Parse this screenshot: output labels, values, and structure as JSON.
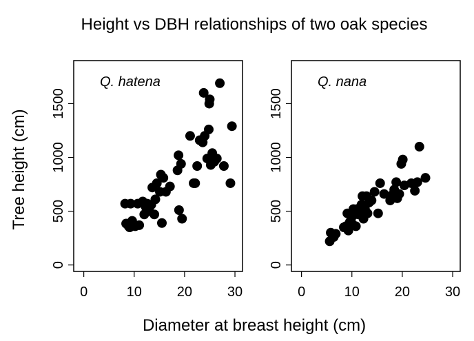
{
  "figure": {
    "title": "Height vs DBH relationships of two oak species",
    "xlabel": "Diameter at breast height (cm)",
    "ylabel": "Tree height (cm)"
  },
  "chart_data": [
    {
      "type": "scatter",
      "panel_label": "Q. hatena",
      "xlim": [
        -2,
        31.5
      ],
      "ylim": [
        -60,
        1900
      ],
      "x_ticks": [
        0,
        10,
        20,
        30
      ],
      "y_ticks": [
        0,
        500,
        1000,
        1500
      ],
      "grid": false,
      "points": [
        [
          8.2,
          570
        ],
        [
          8.4,
          385
        ],
        [
          8.9,
          360
        ],
        [
          9.1,
          350
        ],
        [
          9.3,
          570
        ],
        [
          9.6,
          410
        ],
        [
          10.2,
          360
        ],
        [
          10.7,
          570
        ],
        [
          11.0,
          370
        ],
        [
          11.7,
          590
        ],
        [
          12.0,
          470
        ],
        [
          12.3,
          540
        ],
        [
          12.6,
          570
        ],
        [
          13.0,
          500
        ],
        [
          13.4,
          560
        ],
        [
          13.6,
          720
        ],
        [
          14.0,
          470
        ],
        [
          14.2,
          610
        ],
        [
          14.5,
          760
        ],
        [
          15.1,
          680
        ],
        [
          15.3,
          840
        ],
        [
          15.5,
          390
        ],
        [
          15.8,
          810
        ],
        [
          16.3,
          680
        ],
        [
          17.1,
          730
        ],
        [
          18.6,
          880
        ],
        [
          18.8,
          1020
        ],
        [
          18.9,
          510
        ],
        [
          19.3,
          940
        ],
        [
          19.5,
          430
        ],
        [
          21.1,
          1200
        ],
        [
          21.8,
          760
        ],
        [
          22.1,
          760
        ],
        [
          22.5,
          920
        ],
        [
          23.0,
          1160
        ],
        [
          23.6,
          1140
        ],
        [
          23.8,
          1600
        ],
        [
          24.0,
          1200
        ],
        [
          24.5,
          990
        ],
        [
          24.8,
          1260
        ],
        [
          24.9,
          1500
        ],
        [
          25.0,
          1540
        ],
        [
          25.2,
          930
        ],
        [
          25.5,
          1040
        ],
        [
          25.9,
          960
        ],
        [
          26.4,
          990
        ],
        [
          27.0,
          1690
        ],
        [
          27.8,
          920
        ],
        [
          29.1,
          760
        ],
        [
          29.4,
          1290
        ]
      ]
    },
    {
      "type": "scatter",
      "panel_label": "Q. nana",
      "xlim": [
        -2,
        31.5
      ],
      "ylim": [
        -60,
        1900
      ],
      "x_ticks": [
        0,
        10,
        20,
        30
      ],
      "y_ticks": [
        0,
        500,
        1000,
        1500
      ],
      "grid": false,
      "points": [
        [
          5.6,
          220
        ],
        [
          5.8,
          300
        ],
        [
          6.4,
          260
        ],
        [
          6.8,
          290
        ],
        [
          8.4,
          350
        ],
        [
          8.8,
          360
        ],
        [
          9.1,
          480
        ],
        [
          9.3,
          320
        ],
        [
          9.6,
          400
        ],
        [
          9.9,
          440
        ],
        [
          10.1,
          380
        ],
        [
          10.3,
          520
        ],
        [
          10.5,
          470
        ],
        [
          10.8,
          360
        ],
        [
          11.0,
          520
        ],
        [
          11.3,
          470
        ],
        [
          11.6,
          500
        ],
        [
          11.9,
          560
        ],
        [
          12.1,
          640
        ],
        [
          12.3,
          430
        ],
        [
          12.6,
          520
        ],
        [
          12.9,
          640
        ],
        [
          13.1,
          480
        ],
        [
          13.4,
          580
        ],
        [
          13.9,
          600
        ],
        [
          14.5,
          680
        ],
        [
          15.2,
          480
        ],
        [
          15.6,
          760
        ],
        [
          16.4,
          660
        ],
        [
          17.6,
          600
        ],
        [
          18.0,
          650
        ],
        [
          18.4,
          700
        ],
        [
          18.8,
          770
        ],
        [
          19.0,
          620
        ],
        [
          19.4,
          660
        ],
        [
          19.8,
          940
        ],
        [
          20.1,
          980
        ],
        [
          20.4,
          740
        ],
        [
          21.8,
          760
        ],
        [
          22.5,
          690
        ],
        [
          23.0,
          770
        ],
        [
          23.4,
          1100
        ],
        [
          24.6,
          810
        ]
      ]
    }
  ]
}
